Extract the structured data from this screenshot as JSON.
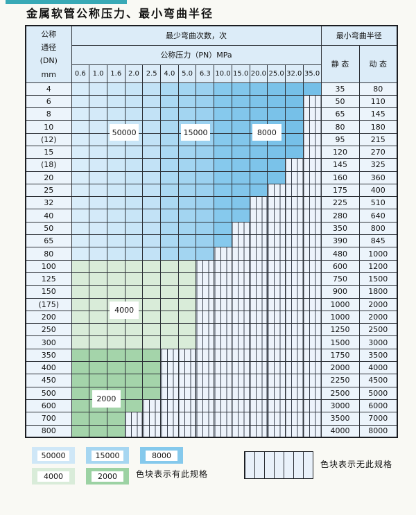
{
  "page": {
    "title": "金属软管公称压力、最小弯曲半径"
  },
  "colors": {
    "accent_bar": "#38a9b6",
    "grid": "#2c3036",
    "header_bg": "#dcecf8",
    "label_cell_bg": "#ecf4fb",
    "hatch_bg": "#edf3fb",
    "hatch_line": "#3c4350",
    "column_shades": [
      "#d9edfa",
      "#d4eaf9",
      "#cee8f8",
      "#c8e5f7",
      "#c2e2f6",
      "#abd9f3",
      "#a3d5f1",
      "#9bd1f0",
      "#86c9ed",
      "#82c6eb",
      "#7ec4ea",
      "#7ac2e9",
      "#76c0e8",
      "#74bfe8"
    ],
    "green_light": "#d9ecd9",
    "green_dark": "#a4d4aa"
  },
  "chart_data": {
    "type": "table",
    "title": "金属软管公称压力、最小弯曲半径",
    "header": {
      "dn_lines": [
        "公称",
        "通径",
        "(DN)",
        "mm"
      ],
      "cycles": "最少弯曲次数，次",
      "pressure": "公称压力（PN）MPa",
      "radius": "最小弯曲半径",
      "static": "静 态",
      "dynamic": "动 态"
    },
    "pressures": [
      "0.6",
      "1.0",
      "1.6",
      "2.0",
      "2.5",
      "4.0",
      "5.0",
      "6.3",
      "10.0",
      "15.0",
      "20.0",
      "25.0",
      "32.0",
      "35.0"
    ],
    "rows": [
      {
        "dn": "4",
        "max_pn": "35.0",
        "static": "35",
        "dynamic": "80"
      },
      {
        "dn": "6",
        "max_pn": "32.0",
        "static": "50",
        "dynamic": "110"
      },
      {
        "dn": "8",
        "max_pn": "32.0",
        "static": "65",
        "dynamic": "145"
      },
      {
        "dn": "10",
        "max_pn": "32.0",
        "static": "80",
        "dynamic": "180"
      },
      {
        "dn": "(12)",
        "max_pn": "32.0",
        "static": "95",
        "dynamic": "215"
      },
      {
        "dn": "15",
        "max_pn": "32.0",
        "static": "120",
        "dynamic": "270"
      },
      {
        "dn": "(18)",
        "max_pn": "25.0",
        "static": "145",
        "dynamic": "325"
      },
      {
        "dn": "20",
        "max_pn": "25.0",
        "static": "160",
        "dynamic": "360"
      },
      {
        "dn": "25",
        "max_pn": "20.0",
        "static": "175",
        "dynamic": "400"
      },
      {
        "dn": "32",
        "max_pn": "15.0",
        "static": "225",
        "dynamic": "510"
      },
      {
        "dn": "40",
        "max_pn": "15.0",
        "static": "280",
        "dynamic": "640"
      },
      {
        "dn": "50",
        "max_pn": "10.0",
        "static": "350",
        "dynamic": "800"
      },
      {
        "dn": "65",
        "max_pn": "10.0",
        "static": "390",
        "dynamic": "845"
      },
      {
        "dn": "80",
        "max_pn": "6.3",
        "static": "480",
        "dynamic": "1000"
      },
      {
        "dn": "100",
        "max_pn": "5.0",
        "static": "600",
        "dynamic": "1200"
      },
      {
        "dn": "125",
        "max_pn": "5.0",
        "static": "750",
        "dynamic": "1500"
      },
      {
        "dn": "150",
        "max_pn": "5.0",
        "static": "900",
        "dynamic": "1800"
      },
      {
        "dn": "(175)",
        "max_pn": "5.0",
        "static": "1000",
        "dynamic": "2000"
      },
      {
        "dn": "200",
        "max_pn": "5.0",
        "static": "1000",
        "dynamic": "2000"
      },
      {
        "dn": "250",
        "max_pn": "5.0",
        "static": "1250",
        "dynamic": "2500"
      },
      {
        "dn": "300",
        "max_pn": "5.0",
        "static": "1500",
        "dynamic": "3000"
      },
      {
        "dn": "350",
        "max_pn": "2.5",
        "static": "1750",
        "dynamic": "3500"
      },
      {
        "dn": "400",
        "max_pn": "2.5",
        "static": "2000",
        "dynamic": "4000"
      },
      {
        "dn": "450",
        "max_pn": "2.5",
        "static": "2250",
        "dynamic": "4500"
      },
      {
        "dn": "500",
        "max_pn": "2.5",
        "static": "2500",
        "dynamic": "5000"
      },
      {
        "dn": "600",
        "max_pn": "2.0",
        "static": "3000",
        "dynamic": "6000"
      },
      {
        "dn": "700",
        "max_pn": "1.6",
        "static": "3500",
        "dynamic": "7000"
      },
      {
        "dn": "800",
        "max_pn": "1.6",
        "static": "4000",
        "dynamic": "8000"
      }
    ],
    "cycle_zones": {
      "blue_by_pressure": {
        "50000": [
          "0.6",
          "2.5"
        ],
        "15000": [
          "4.0",
          "6.3"
        ],
        "8000": [
          "10.0",
          "35.0"
        ]
      },
      "green_by_dn": {
        "4000": [
          "100",
          "300"
        ],
        "2000": [
          "350",
          "800"
        ]
      }
    },
    "overlays": [
      {
        "label": "50000",
        "cols": [
          "1.6",
          "2.0"
        ],
        "rows": [
          "10",
          "(12)"
        ]
      },
      {
        "label": "15000",
        "cols": [
          "5.0",
          "6.3"
        ],
        "rows": [
          "10",
          "(12)"
        ]
      },
      {
        "label": "8000",
        "cols": [
          "20.0",
          "25.0"
        ],
        "rows": [
          "10",
          "(12)"
        ]
      },
      {
        "label": "4000",
        "cols": [
          "1.6",
          "2.0"
        ],
        "rows": [
          "(175)",
          "200"
        ]
      },
      {
        "label": "2000",
        "cols": [
          "1.0",
          "1.6"
        ],
        "rows": [
          "500",
          "600"
        ]
      }
    ],
    "legend": {
      "row1": [
        {
          "label": "50000",
          "color": "#cfe7f7"
        },
        {
          "label": "15000",
          "color": "#a6d6f1"
        },
        {
          "label": "8000",
          "color": "#85c9ec"
        }
      ],
      "row2": [
        {
          "label": "4000",
          "color": "#d9ecd9"
        },
        {
          "label": "2000",
          "color": "#9cd2a3"
        }
      ],
      "has_spec_text": "色块表示有此规格",
      "no_spec_text": "色块表示无此规格"
    }
  }
}
